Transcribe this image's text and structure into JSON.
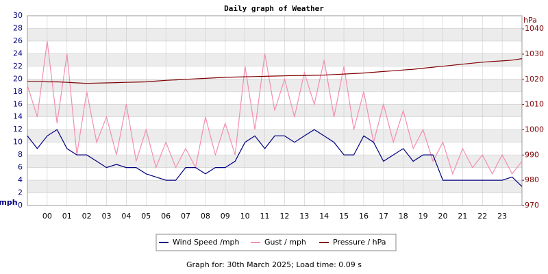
{
  "chart_data": {
    "type": "line",
    "title": "Daily graph of Weather",
    "ylabel": "mph",
    "y2label": "hPa",
    "footer": "Graph for: 30th March 2025; Load time: 0.09 s",
    "x": [
      -1,
      -0.5,
      0,
      0.5,
      1,
      1.5,
      2,
      2.5,
      3,
      3.5,
      4,
      4.5,
      5,
      5.5,
      6,
      6.5,
      7,
      7.5,
      8,
      8.5,
      9,
      9.5,
      10,
      10.5,
      11,
      11.5,
      12,
      12.5,
      13,
      13.5,
      14,
      14.5,
      15,
      15.5,
      16,
      16.5,
      17,
      17.5,
      18,
      18.5,
      19,
      19.5,
      20,
      20.5,
      21,
      21.5,
      22,
      22.5,
      23,
      23.5,
      24
    ],
    "xlim": [
      -1,
      24
    ],
    "xticks": [
      {
        "value": 0,
        "label": "00"
      },
      {
        "value": 1,
        "label": "01"
      },
      {
        "value": 2,
        "label": "02"
      },
      {
        "value": 3,
        "label": "03"
      },
      {
        "value": 4,
        "label": "04"
      },
      {
        "value": 5,
        "label": "05"
      },
      {
        "value": 6,
        "label": "06"
      },
      {
        "value": 7,
        "label": "07"
      },
      {
        "value": 8,
        "label": "08"
      },
      {
        "value": 9,
        "label": "09"
      },
      {
        "value": 10,
        "label": "10"
      },
      {
        "value": 11,
        "label": "11"
      },
      {
        "value": 12,
        "label": "12"
      },
      {
        "value": 13,
        "label": "13"
      },
      {
        "value": 14,
        "label": "14"
      },
      {
        "value": 15,
        "label": "15"
      },
      {
        "value": 16,
        "label": "16"
      },
      {
        "value": 17,
        "label": "17"
      },
      {
        "value": 18,
        "label": "18"
      },
      {
        "value": 19,
        "label": "19"
      },
      {
        "value": 20,
        "label": "20"
      },
      {
        "value": 21,
        "label": "21"
      },
      {
        "value": 22,
        "label": "22"
      },
      {
        "value": 23,
        "label": "23"
      }
    ],
    "ylim": [
      0,
      30
    ],
    "yticks": [
      0,
      2,
      4,
      6,
      8,
      10,
      12,
      14,
      16,
      18,
      20,
      22,
      24,
      26,
      28,
      30
    ],
    "y2lim": [
      970,
      1045.2
    ],
    "y2ticks": [
      970,
      980,
      990,
      1000,
      1010,
      1020,
      1030,
      1040
    ],
    "grid": true,
    "series": [
      {
        "name": "Wind Speed /mph",
        "color": "#000080",
        "values": [
          11,
          9,
          11,
          12,
          9,
          8,
          8,
          7,
          6,
          6.5,
          6,
          6,
          5,
          4.5,
          4,
          4,
          6,
          6,
          5,
          6,
          6,
          7,
          10,
          11,
          9,
          11,
          11,
          10,
          11,
          12,
          11,
          10,
          8,
          8,
          11,
          10,
          7,
          8,
          9,
          7,
          8,
          8,
          4,
          4,
          4,
          4,
          4,
          4,
          4,
          4.5,
          3
        ]
      },
      {
        "name": "Gust / mph",
        "color": "#f58db0",
        "values": [
          19,
          14,
          26,
          13,
          24,
          8,
          18,
          10,
          14,
          8,
          16,
          7,
          12,
          6,
          10,
          6,
          9,
          6,
          14,
          8,
          13,
          8,
          22,
          12,
          24,
          15,
          20,
          14,
          21,
          16,
          23,
          14,
          22,
          12,
          18,
          10,
          16,
          10,
          15,
          9,
          12,
          7,
          10,
          5,
          9,
          6,
          8,
          5,
          8,
          5,
          7
        ]
      },
      {
        "name": "Pressure / hPa",
        "color": "#800000",
        "axis": "y2",
        "values": [
          1019.2,
          1019.2,
          1019.0,
          1019.0,
          1018.8,
          1018.6,
          1018.4,
          1018.5,
          1018.6,
          1018.7,
          1018.8,
          1018.9,
          1019.0,
          1019.3,
          1019.6,
          1019.8,
          1020.0,
          1020.2,
          1020.4,
          1020.6,
          1020.8,
          1020.9,
          1021.0,
          1021.1,
          1021.2,
          1021.3,
          1021.4,
          1021.5,
          1021.5,
          1021.6,
          1021.7,
          1021.9,
          1022.1,
          1022.3,
          1022.5,
          1022.8,
          1023.1,
          1023.4,
          1023.7,
          1024.0,
          1024.4,
          1024.8,
          1025.2,
          1025.6,
          1026.0,
          1026.4,
          1026.8,
          1027.1,
          1027.3,
          1027.6,
          1028.2
        ]
      }
    ]
  }
}
